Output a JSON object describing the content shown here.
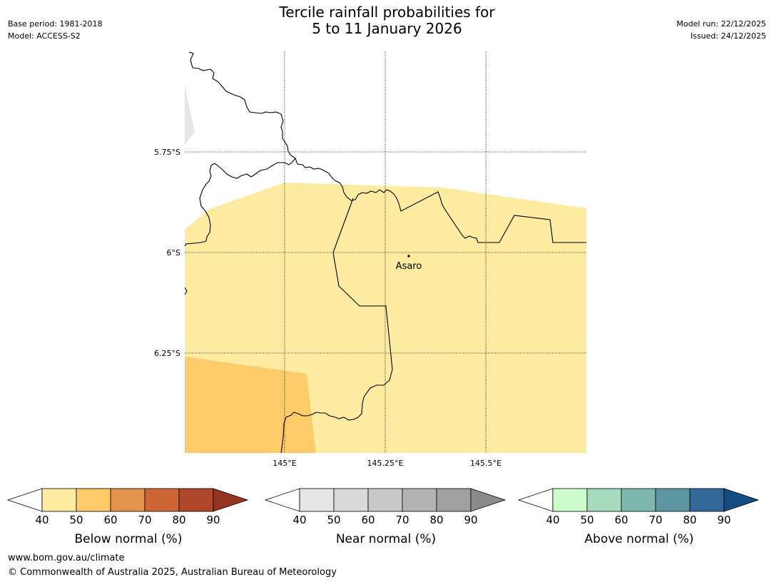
{
  "header": {
    "title_line1": "Tercile rainfall probabilities for",
    "title_line2": "5 to 11 January 2026",
    "base_period": "Base period: 1981-2018",
    "model": "Model: ACCESS-S2",
    "model_run": "Model run: 22/12/2025",
    "issued": "Issued: 24/12/2025"
  },
  "map": {
    "lat_labels": [
      "5.75°S",
      "6°S",
      "6.25°S"
    ],
    "lon_labels": [
      "145°E",
      "145.25°E",
      "145.5°E"
    ],
    "place": "Asaro",
    "shading": [
      {
        "category": "Below normal",
        "probability_bin": "40-50",
        "color": "#FDEBA1"
      },
      {
        "category": "Below normal",
        "probability_bin": "50-60",
        "color": "#FDCB69"
      },
      {
        "category": "Near normal",
        "probability_bin": "40-50",
        "color": "#E6E6E6"
      }
    ]
  },
  "colorbars": [
    {
      "title": "Below normal (%)",
      "ticks": [
        "40",
        "50",
        "60",
        "70",
        "80",
        "90"
      ],
      "colors": [
        "#FEEBA0",
        "#FECB68",
        "#E2924A",
        "#CD6534",
        "#AE4627"
      ],
      "over": "#943320"
    },
    {
      "title": "Near normal (%)",
      "ticks": [
        "40",
        "50",
        "60",
        "70",
        "80",
        "90"
      ],
      "colors": [
        "#E6E6E6",
        "#D9D9D9",
        "#C8C8C8",
        "#B3B3B3",
        "#9F9F9F"
      ],
      "over": "#8A8A8A"
    },
    {
      "title": "Above normal (%)",
      "ticks": [
        "40",
        "50",
        "60",
        "70",
        "80",
        "90"
      ],
      "colors": [
        "#CCFCCC",
        "#A6DABC",
        "#80B8AF",
        "#5B96A1",
        "#306899"
      ],
      "over": "#154C82"
    }
  ],
  "footer": {
    "url": "www.bom.gov.au/climate",
    "copyright": "© Commonwealth of Australia 2025, Australian Bureau of Meteorology"
  }
}
